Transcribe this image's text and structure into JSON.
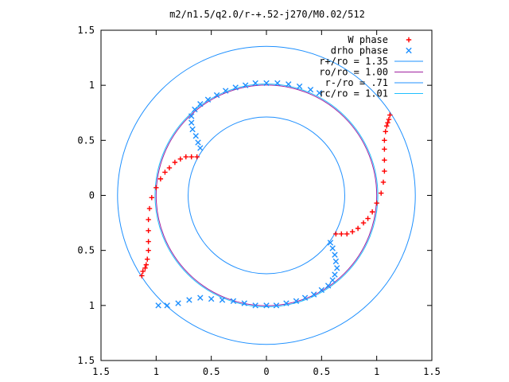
{
  "chart_data": {
    "type": "scatter",
    "title": "m2/n1.5/q2.0/r-+.52-j270/M0.02/512",
    "xlim": [
      -1.5,
      1.5
    ],
    "ylim": [
      -1.5,
      1.5
    ],
    "x_ticks": [
      -1.5,
      -1,
      -0.5,
      0,
      0.5,
      1,
      1.5
    ],
    "y_ticks": [
      -1.5,
      -1,
      -0.5,
      0,
      0.5,
      1,
      1.5
    ],
    "x_tick_labels": [
      "1.5",
      "1",
      "0.5",
      "0",
      "0.5",
      "1",
      "1.5"
    ],
    "y_tick_labels": [
      "1.5",
      "1",
      "0.5",
      "0",
      "0.5",
      "1",
      "1.5"
    ],
    "grid": false,
    "legend_position": "top-right",
    "legend": [
      {
        "label": "W phase",
        "kind": "points",
        "marker": "plus",
        "color": "#ff0000"
      },
      {
        "label": "drho phase",
        "kind": "points",
        "marker": "cross",
        "color": "#1e90ff"
      },
      {
        "label": "r+/ro = 1.35",
        "kind": "circle",
        "r": 1.35,
        "color": "#1e90ff"
      },
      {
        "label": "ro/ro = 1.00",
        "kind": "circle",
        "r": 1.0,
        "color": "#a020a0"
      },
      {
        "label": "r-/ro = .71",
        "kind": "circle",
        "r": 0.71,
        "color": "#2090ff"
      },
      {
        "label": "rc/ro = 1.01",
        "kind": "circle",
        "r": 1.01,
        "color": "#20c0ff"
      }
    ],
    "series": [
      {
        "name": "W phase",
        "color": "#ff0000",
        "marker": "plus",
        "segments": [
          [
            [
              -1.13,
              -0.73
            ],
            [
              -1.12,
              -0.69
            ],
            [
              -1.1,
              -0.66
            ],
            [
              -1.09,
              -0.63
            ],
            [
              -1.08,
              -0.58
            ],
            [
              -1.07,
              -0.5
            ],
            [
              -1.07,
              -0.42
            ],
            [
              -1.07,
              -0.32
            ],
            [
              -1.07,
              -0.22
            ],
            [
              -1.06,
              -0.12
            ],
            [
              -1.04,
              -0.02
            ],
            [
              -1.0,
              0.07
            ],
            [
              -0.96,
              0.15
            ],
            [
              -0.92,
              0.21
            ],
            [
              -0.88,
              0.25
            ],
            [
              -0.83,
              0.3
            ],
            [
              -0.78,
              0.33
            ],
            [
              -0.73,
              0.35
            ],
            [
              -0.68,
              0.35
            ],
            [
              -0.63,
              0.35
            ]
          ],
          [
            [
              1.12,
              0.73
            ],
            [
              1.11,
              0.69
            ],
            [
              1.1,
              0.66
            ],
            [
              1.09,
              0.63
            ],
            [
              1.08,
              0.58
            ],
            [
              1.07,
              0.5
            ],
            [
              1.07,
              0.42
            ],
            [
              1.07,
              0.32
            ],
            [
              1.07,
              0.22
            ],
            [
              1.06,
              0.12
            ],
            [
              1.04,
              0.02
            ],
            [
              1.0,
              -0.07
            ],
            [
              0.96,
              -0.15
            ],
            [
              0.92,
              -0.21
            ],
            [
              0.88,
              -0.25
            ],
            [
              0.83,
              -0.3
            ],
            [
              0.78,
              -0.33
            ],
            [
              0.73,
              -0.35
            ],
            [
              0.68,
              -0.35
            ],
            [
              0.63,
              -0.35
            ]
          ]
        ]
      },
      {
        "name": "drho phase",
        "color": "#1e90ff",
        "marker": "cross",
        "segments": [
          [
            [
              -0.6,
              0.43
            ],
            [
              -0.62,
              0.48
            ],
            [
              -0.64,
              0.54
            ],
            [
              -0.67,
              0.6
            ],
            [
              -0.68,
              0.66
            ],
            [
              -0.68,
              0.72
            ],
            [
              -0.65,
              0.78
            ],
            [
              -0.6,
              0.83
            ],
            [
              -0.53,
              0.87
            ],
            [
              -0.45,
              0.91
            ],
            [
              -0.37,
              0.95
            ],
            [
              -0.28,
              0.98
            ],
            [
              -0.19,
              1.0
            ],
            [
              -0.1,
              1.02
            ],
            [
              0.0,
              1.02
            ],
            [
              0.1,
              1.02
            ],
            [
              0.2,
              1.01
            ],
            [
              0.3,
              0.99
            ],
            [
              0.4,
              0.96
            ],
            [
              0.48,
              0.93
            ]
          ],
          [
            [
              0.58,
              -0.43
            ],
            [
              0.6,
              -0.48
            ],
            [
              0.62,
              -0.54
            ],
            [
              0.63,
              -0.6
            ],
            [
              0.64,
              -0.66
            ],
            [
              0.62,
              -0.72
            ],
            [
              0.6,
              -0.77
            ],
            [
              0.56,
              -0.82
            ],
            [
              0.5,
              -0.86
            ],
            [
              0.43,
              -0.9
            ],
            [
              0.35,
              -0.93
            ],
            [
              0.27,
              -0.96
            ],
            [
              0.18,
              -0.98
            ],
            [
              0.09,
              -1.0
            ],
            [
              0.0,
              -1.0
            ],
            [
              -0.1,
              -1.0
            ],
            [
              -0.2,
              -0.98
            ],
            [
              -0.3,
              -0.96
            ],
            [
              -0.4,
              -0.95
            ],
            [
              -0.5,
              -0.94
            ],
            [
              -0.6,
              -0.93
            ],
            [
              -0.7,
              -0.95
            ],
            [
              -0.8,
              -0.98
            ],
            [
              -0.9,
              -1.0
            ],
            [
              -0.98,
              -1.0
            ]
          ]
        ]
      }
    ]
  }
}
